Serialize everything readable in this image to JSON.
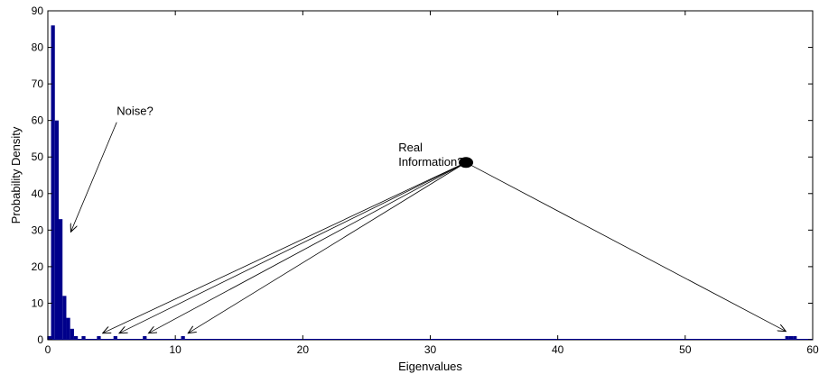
{
  "chart_data": {
    "type": "bar",
    "title": "",
    "xlabel": "Eigenvalues",
    "ylabel": "Probability Density",
    "xlim": [
      0,
      60
    ],
    "ylim": [
      0,
      90
    ],
    "xticks": [
      0,
      10,
      20,
      30,
      40,
      50,
      60
    ],
    "yticks": [
      0,
      10,
      20,
      30,
      40,
      50,
      60,
      70,
      80,
      90
    ],
    "bin_width": 0.3,
    "bar_color": "#00008B",
    "bins": [
      {
        "x": 0.1,
        "y": 1
      },
      {
        "x": 0.4,
        "y": 86
      },
      {
        "x": 0.7,
        "y": 60
      },
      {
        "x": 1.0,
        "y": 33
      },
      {
        "x": 1.3,
        "y": 12
      },
      {
        "x": 1.6,
        "y": 6
      },
      {
        "x": 1.9,
        "y": 3
      },
      {
        "x": 2.2,
        "y": 1
      },
      {
        "x": 2.8,
        "y": 1
      },
      {
        "x": 4.0,
        "y": 1
      },
      {
        "x": 5.3,
        "y": 1
      },
      {
        "x": 7.6,
        "y": 1
      },
      {
        "x": 10.6,
        "y": 1
      },
      {
        "x": 58.0,
        "y": 1
      },
      {
        "x": 58.3,
        "y": 1
      },
      {
        "x": 58.6,
        "y": 1
      }
    ],
    "annotations": [
      {
        "lines": [
          "Noise?"
        ],
        "text_at": [
          5.4,
          61.5
        ],
        "arrow_from": [
          5.4,
          59.5
        ],
        "arrow_to": [
          1.8,
          29.5
        ]
      },
      {
        "lines": [
          "Real",
          "Information?"
        ],
        "text_at": [
          27.5,
          51.5
        ],
        "arrow_from": [
          32.8,
          48.5
        ],
        "arrow_targets": [
          [
            4.3,
            1.8
          ],
          [
            5.6,
            1.8
          ],
          [
            7.9,
            1.8
          ],
          [
            11.0,
            1.8
          ],
          [
            57.9,
            2.3
          ]
        ]
      }
    ]
  }
}
